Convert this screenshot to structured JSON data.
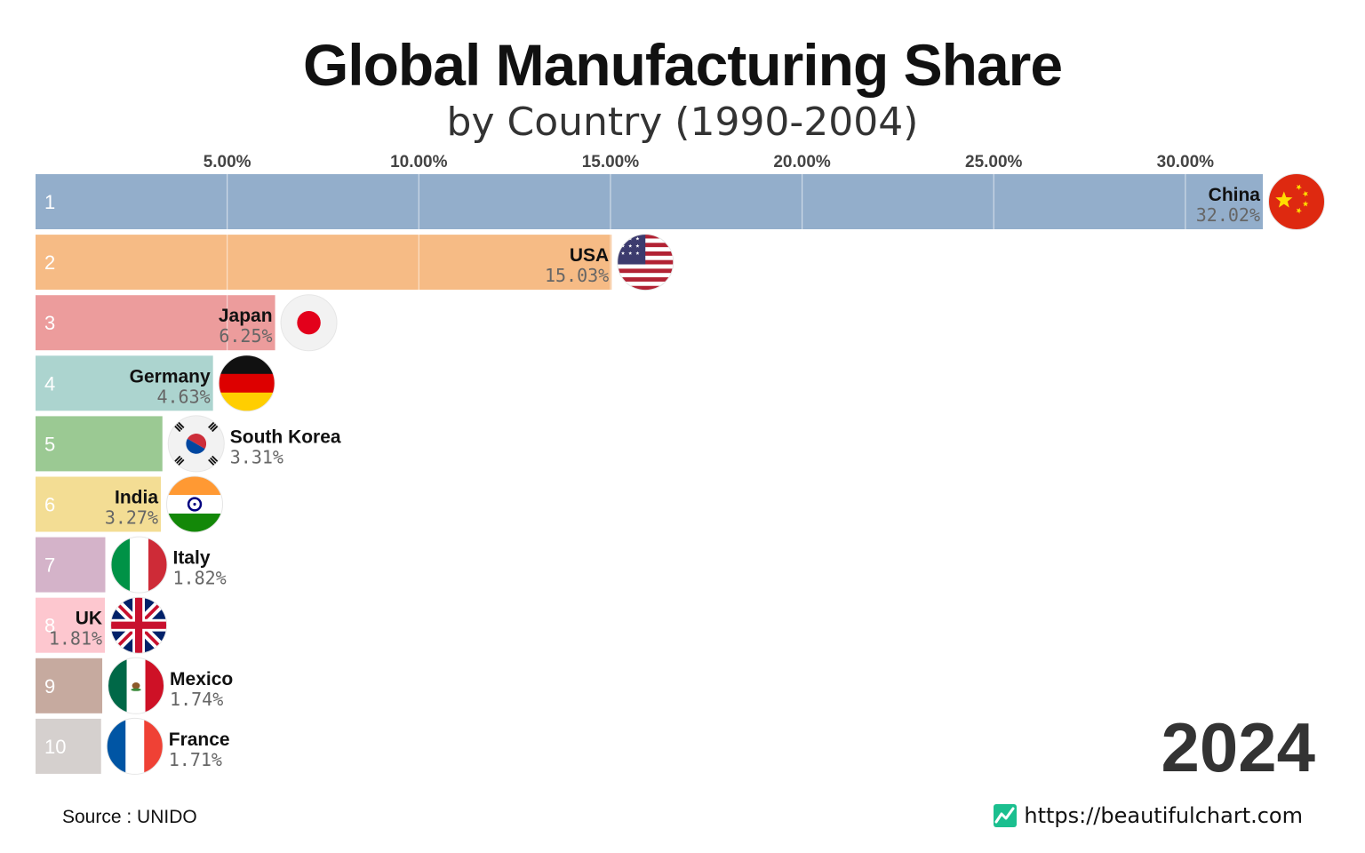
{
  "title": "Global Manufacturing Share",
  "subtitle": "by Country (1990-2004)",
  "year": "2024",
  "source": "Source : UNIDO",
  "credit": {
    "text": "https://beautifulchart.com",
    "icon": "chart-logo-icon",
    "icon_color": "#1bbf8f"
  },
  "chart_data": {
    "type": "bar",
    "orientation": "horizontal",
    "title": "Global Manufacturing Share",
    "subtitle": "by Country (1990-2004)",
    "xlim": [
      0,
      32.02
    ],
    "xticks": [
      5,
      10,
      15,
      20,
      25,
      30
    ],
    "xtick_labels": [
      "5.00%",
      "10.00%",
      "15.00%",
      "20.00%",
      "25.00%",
      "30.00%"
    ],
    "grid": true,
    "categories": [
      "China",
      "USA",
      "Japan",
      "Germany",
      "South Korea",
      "India",
      "Italy",
      "UK",
      "Mexico",
      "France"
    ],
    "ranks": [
      "1",
      "2",
      "3",
      "4",
      "5",
      "6",
      "7",
      "8",
      "9",
      "10"
    ],
    "values": [
      32.02,
      15.03,
      6.25,
      4.63,
      3.31,
      3.27,
      1.82,
      1.81,
      1.74,
      1.71
    ],
    "value_labels": [
      "32.02%",
      "15.03%",
      "6.25%",
      "4.63%",
      "3.31%",
      "3.27%",
      "1.82%",
      "1.81%",
      "1.74%",
      "1.71%"
    ],
    "colors": [
      "#93aecb",
      "#f6bb85",
      "#ec9c9c",
      "#acd4cf",
      "#9bc993",
      "#f3dd94",
      "#d4b3c9",
      "#fdc7cf",
      "#c6aa9f",
      "#d5d0ce"
    ],
    "flags": [
      "china-flag-icon",
      "usa-flag-icon",
      "japan-flag-icon",
      "germany-flag-icon",
      "south-korea-flag-icon",
      "india-flag-icon",
      "italy-flag-icon",
      "uk-flag-icon",
      "mexico-flag-icon",
      "france-flag-icon"
    ]
  }
}
